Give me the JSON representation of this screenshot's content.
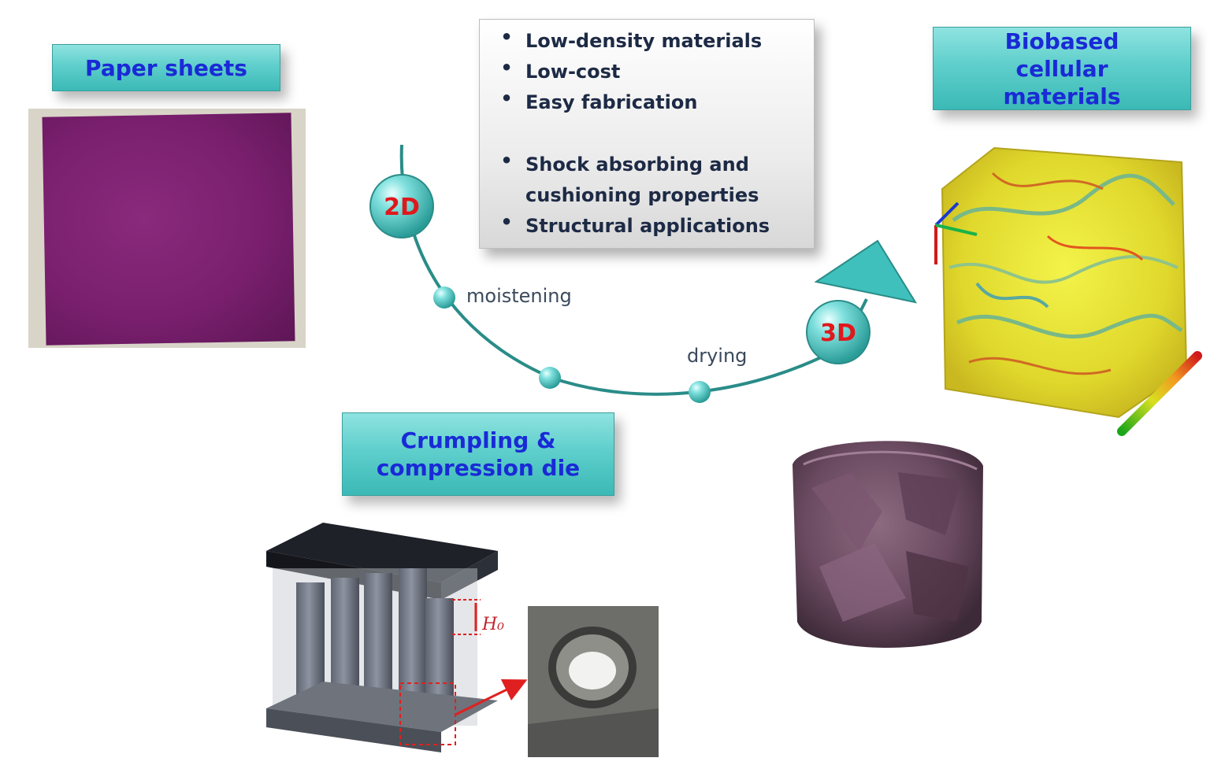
{
  "labels": {
    "paper_sheets": "Paper sheets",
    "biobased": "Biobased cellular materials",
    "crumpling": "Crumpling & compression die"
  },
  "properties": [
    "Low-density materials",
    "Low-cost",
    "Easy fabrication",
    "Shock absorbing and cushioning properties",
    "Structural applications"
  ],
  "process": {
    "start_badge": "2D",
    "end_badge": "3D",
    "step1": "moistening",
    "step2": "drying"
  },
  "die_annotation": "H₀",
  "colors": {
    "label_text": "#1a2ad6",
    "label_fill": "#5fcfcc",
    "badge_text": "#e0181c",
    "curve": "#2a8c88",
    "paper": "#7a1f6e"
  }
}
